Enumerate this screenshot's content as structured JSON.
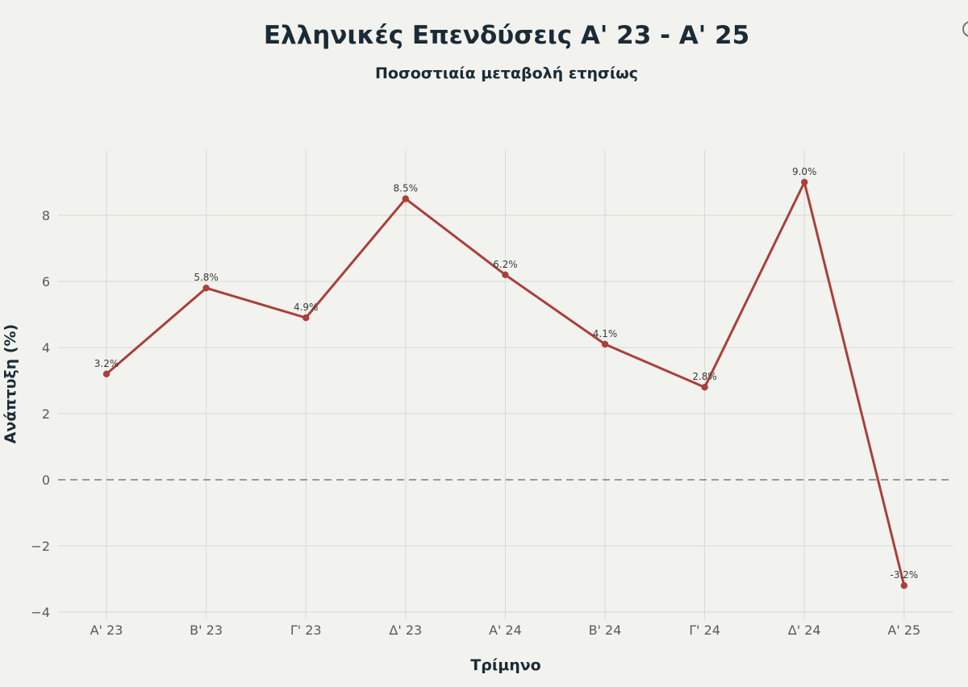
{
  "chart_data": {
    "type": "line",
    "title": "Ελληνικές Επενδύσεις Α' 23 - Α' 25",
    "subtitle": "Ποσοστιαία μεταβολή ετησίως",
    "xlabel": "Τρίμηνο",
    "ylabel": "Ανάπτυξη (%)",
    "categories": [
      "Α' 23",
      "Β' 23",
      "Γ' 23",
      "Δ' 23",
      "Α' 24",
      "Β' 24",
      "Γ' 24",
      "Δ' 24",
      "Α' 25"
    ],
    "values": [
      3.2,
      5.8,
      4.9,
      8.5,
      6.2,
      4.1,
      2.8,
      9.0,
      -3.2
    ],
    "data_labels": [
      "3.2%",
      "5.8%",
      "4.9%",
      "8.5%",
      "6.2%",
      "4.1%",
      "2.8%",
      "9.0%",
      "-3.2%"
    ],
    "yticks": [
      8,
      6,
      4,
      2,
      0,
      -2,
      -4
    ],
    "ytick_labels": [
      "8",
      "6",
      "4",
      "2",
      "0",
      "−2",
      "−4"
    ],
    "ylim": [
      -4.4,
      9.9
    ],
    "grid": true,
    "zero_line": "dashed",
    "line_color": "#a8403b",
    "legend": "none"
  }
}
